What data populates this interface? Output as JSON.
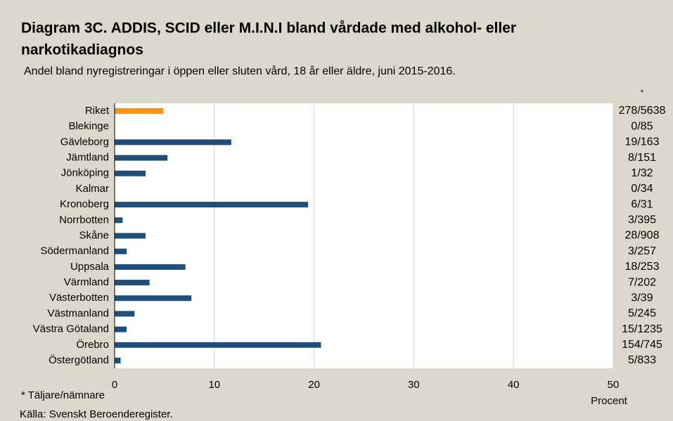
{
  "chart_data": {
    "type": "bar",
    "orientation": "horizontal",
    "title_lines": [
      "Diagram 3C. ADDIS, SCID eller M.I.N.I bland vårdade med alkohol- eller",
      "narkotikadiagnos"
    ],
    "subtitle": "Andel bland nyregistreringar i öppen eller sluten vård, 18 år eller äldre, juni 2015-2016.",
    "categories": [
      "Riket",
      "Blekinge",
      "Gävleborg",
      "Jämtland",
      "Jönköping",
      "Kalmar",
      "Kronoberg",
      "Norrbotten",
      "Skåne",
      "Södermanland",
      "Uppsala",
      "Värmland",
      "Västerbotten",
      "Västmanland",
      "Västra Götaland",
      "Örebro",
      "Östergötland"
    ],
    "values": [
      4.9,
      0,
      11.7,
      5.3,
      3.1,
      0,
      19.4,
      0.8,
      3.1,
      1.2,
      7.1,
      3.5,
      7.7,
      2.0,
      1.2,
      20.7,
      0.6
    ],
    "colors": [
      "#f7941d",
      "#1f4e79",
      "#1f4e79",
      "#1f4e79",
      "#1f4e79",
      "#1f4e79",
      "#1f4e79",
      "#1f4e79",
      "#1f4e79",
      "#1f4e79",
      "#1f4e79",
      "#1f4e79",
      "#1f4e79",
      "#1f4e79",
      "#1f4e79",
      "#1f4e79",
      "#1f4e79"
    ],
    "ratio_header": "*",
    "ratio_labels": [
      "278/5638",
      "0/85",
      "19/163",
      "8/151",
      "1/32",
      "0/34",
      "6/31",
      "3/395",
      "28/908",
      "3/257",
      "18/253",
      "7/202",
      "3/39",
      "5/245",
      "15/1235",
      "154/745",
      "5/833"
    ],
    "x_label": "Procent",
    "xlim": [
      0,
      50
    ],
    "xticks": [
      0,
      10,
      20,
      30,
      40,
      50
    ],
    "grid": true,
    "footnote": "* Täljare/nämnare",
    "source": "Källa: Svenskt Beroenderegister."
  }
}
